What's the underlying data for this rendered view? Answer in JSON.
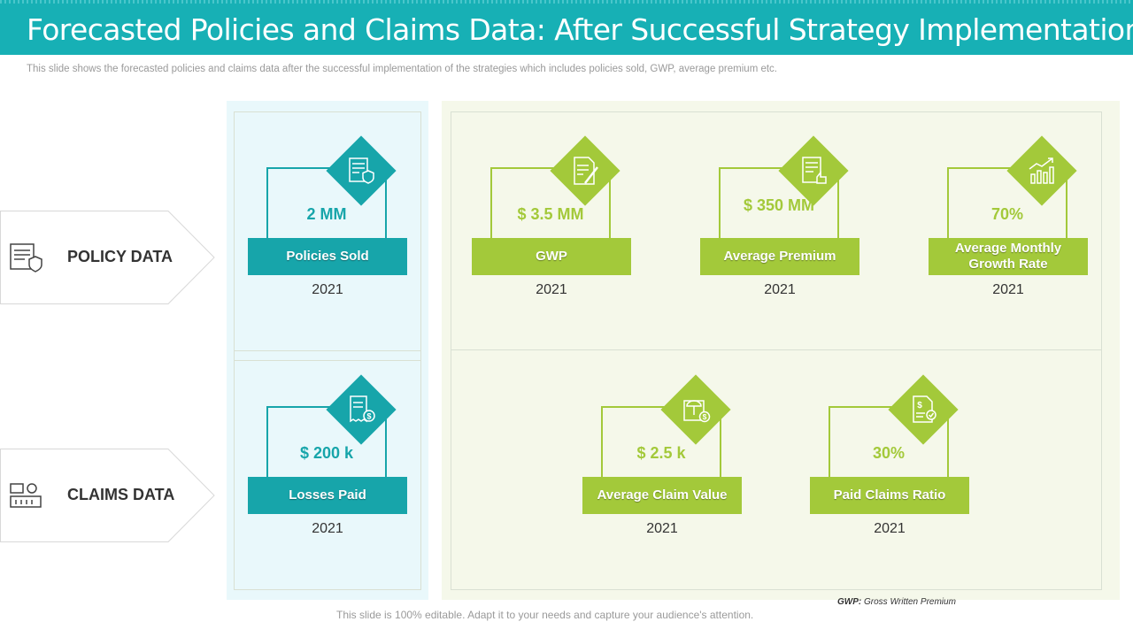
{
  "title": "Forecasted Policies and Claims Data: After Successful Strategy Implementation",
  "subtitle": "This slide shows the forecasted  policies and claims data after the successful implementation  of the strategies which includes policies sold, GWP, average  premium etc.",
  "rows": {
    "policy": {
      "label": "POLICY DATA",
      "icon": "policy-document-icon"
    },
    "claims": {
      "label": "CLAIMS DATA",
      "icon": "claims-money-icon"
    }
  },
  "cards": {
    "policies_sold": {
      "value": "2 MM",
      "label": "Policies Sold",
      "year": "2021",
      "icon": "policy-shield-icon"
    },
    "gwp": {
      "value": "$ 3.5 MM",
      "label": "GWP",
      "year": "2021",
      "icon": "document-pen-icon"
    },
    "avg_premium": {
      "value": "$ 350 MM",
      "label": "Average Premium",
      "year": "2021",
      "icon": "document-thumbs-up-icon"
    },
    "avg_growth": {
      "value": "70%",
      "label": "Average Monthly Growth Rate",
      "year": "2021",
      "icon": "growth-chart-icon"
    },
    "losses_paid": {
      "value": "$ 200 k",
      "label": "Losses  Paid",
      "year": "2021",
      "icon": "invoice-dollar-icon"
    },
    "avg_claim": {
      "value": "$ 2.5 k",
      "label": "Average Claim Value",
      "year": "2021",
      "icon": "claim-umbrella-icon"
    },
    "paid_ratio": {
      "value": "30%",
      "label": "Paid Claims Ratio",
      "year": "2021",
      "icon": "document-check-icon"
    }
  },
  "colors": {
    "teal": "#17a5aa",
    "green": "#a3c93a",
    "title_bar": "#17b0b5"
  },
  "footer": "This slide is 100% editable. Adapt it to your needs and capture your audience's attention.",
  "gwp_note": {
    "abbr": "GWP:",
    "text": "Gross Written Premium"
  }
}
